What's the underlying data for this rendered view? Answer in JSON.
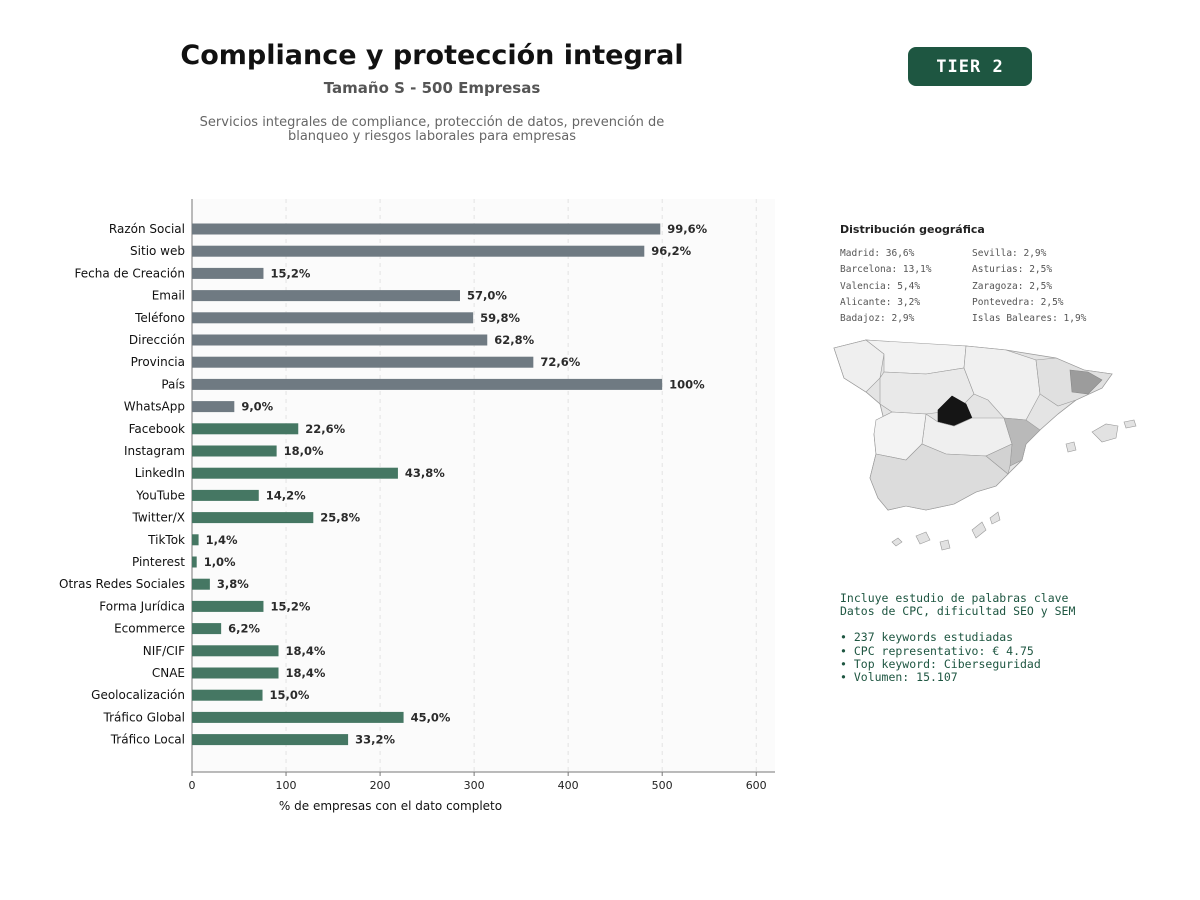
{
  "header": {
    "title": "Compliance y protección integral",
    "subtitle": "Tamaño S - 500 Empresas",
    "description_line1": "Servicios integrales de compliance, protección de datos, prevención de",
    "description_line2": "blanqueo y riesgos laborales para empresas",
    "tier_badge": "TIER 2"
  },
  "colors": {
    "gray_bar": "#6f7a82",
    "green_bar": "#457763",
    "accent_dark_green": "#1e5641",
    "plot_background": "#fbfbfb"
  },
  "chart_data": {
    "type": "bar",
    "orientation": "horizontal",
    "xlabel": "% de empresas con el dato completo",
    "ylabel": "",
    "xlim": [
      0,
      620
    ],
    "xticks": [
      0,
      100,
      200,
      300,
      400,
      500,
      600
    ],
    "grid": "vertical dashed",
    "categories": [
      "Razón Social",
      "Sitio web",
      "Fecha de Creación",
      "Email",
      "Teléfono",
      "Dirección",
      "Provincia",
      "País",
      "WhatsApp",
      "Facebook",
      "Instagram",
      "LinkedIn",
      "YouTube",
      "Twitter/X",
      "TikTok",
      "Pinterest",
      "Otras Redes Sociales",
      "Forma Jurídica",
      "Ecommerce",
      "NIF/CIF",
      "CNAE",
      "Geolocalización",
      "Tráfico Global",
      "Tráfico Local"
    ],
    "values": [
      498,
      481,
      76,
      285,
      299,
      314,
      363,
      500,
      45,
      113,
      90,
      219,
      71,
      129,
      7,
      5,
      19,
      76,
      31,
      92,
      92,
      75,
      225,
      166
    ],
    "labels": [
      "99,6%",
      "96,2%",
      "15,2%",
      "57,0%",
      "59,8%",
      "62,8%",
      "72,6%",
      "100%",
      "9,0%",
      "22,6%",
      "18,0%",
      "43,8%",
      "14,2%",
      "25,8%",
      "1,4%",
      "1,0%",
      "3,8%",
      "15,2%",
      "6,2%",
      "18,4%",
      "18,4%",
      "15,0%",
      "45,0%",
      "33,2%"
    ],
    "bar_color_groups": [
      "gray",
      "gray",
      "gray",
      "gray",
      "gray",
      "gray",
      "gray",
      "gray",
      "gray",
      "green",
      "green",
      "green",
      "green",
      "green",
      "green",
      "green",
      "green",
      "green",
      "green",
      "green",
      "green",
      "green",
      "green",
      "green"
    ]
  },
  "geo": {
    "title": "Distribución geográfica",
    "col1": [
      "Madrid: 36,6%",
      "Barcelona: 13,1%",
      "Valencia: 5,4%",
      "Alicante: 3,2%",
      "Badajoz: 2,9%"
    ],
    "col2": [
      "Sevilla: 2,9%",
      "Asturias: 2,5%",
      "Zaragoza: 2,5%",
      "Pontevedra: 2,5%",
      "Islas Baleares: 1,9%"
    ]
  },
  "keywords": {
    "line1": "Incluye estudio de palabras clave",
    "line2": "Datos de CPC, dificultad SEO y SEM",
    "bullets": [
      "• 237 keywords estudiadas",
      "• CPC representativo: € 4.75",
      "• Top keyword: Ciberseguridad",
      "• Volumen: 15.107"
    ]
  }
}
